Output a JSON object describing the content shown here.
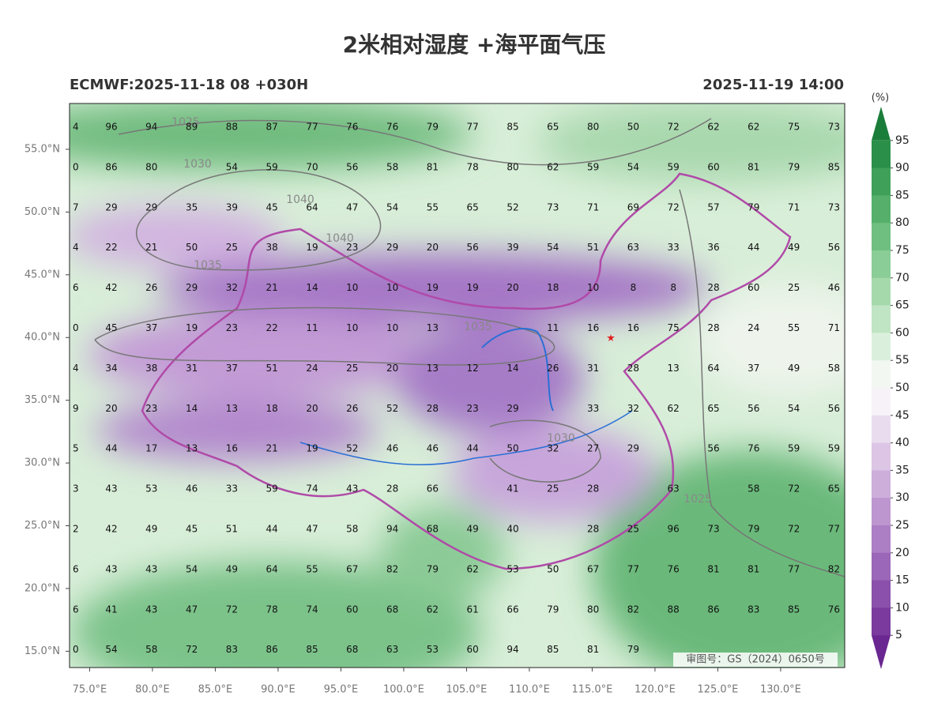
{
  "header": {
    "title": "2米相对湿度 +海平面气压",
    "left": "ECMWF:2025-11-18 08 +030H",
    "right": "2025-11-19 14:00"
  },
  "map": {
    "xlim": [
      73.4,
      135.1
    ],
    "ylim": [
      13.7,
      58.65
    ],
    "xticks": [
      {
        "value": 75,
        "label": "75.0°E"
      },
      {
        "value": 80,
        "label": "80.0°E"
      },
      {
        "value": 85,
        "label": "85.0°E"
      },
      {
        "value": 90,
        "label": "90.0°E"
      },
      {
        "value": 95,
        "label": "95.0°E"
      },
      {
        "value": 100,
        "label": "100.0°E"
      },
      {
        "value": 105,
        "label": "105.0°E"
      },
      {
        "value": 110,
        "label": "110.0°E"
      },
      {
        "value": 115,
        "label": "115.0°E"
      },
      {
        "value": 120,
        "label": "120.0°E"
      },
      {
        "value": 125,
        "label": "125.0°E"
      },
      {
        "value": 130,
        "label": "130.0°E"
      }
    ],
    "yticks": [
      {
        "value": 55,
        "label": "55.0°N"
      },
      {
        "value": 50,
        "label": "50.0°N"
      },
      {
        "value": 45,
        "label": "45.0°N"
      },
      {
        "value": 40,
        "label": "40.0°N"
      },
      {
        "value": 35,
        "label": "35.0°N"
      },
      {
        "value": 30,
        "label": "30.0°N"
      },
      {
        "value": 25,
        "label": "25.0°N"
      },
      {
        "value": 20,
        "label": "20.0°N"
      },
      {
        "value": 15,
        "label": "15.0°N"
      }
    ],
    "isobar_labels": [
      "1025",
      "1030",
      "1040",
      "1040",
      "1035",
      "1035",
      "1030",
      "1025"
    ],
    "approval": "审图号：GS（2024）0650号"
  },
  "grid": {
    "rows": [
      [
        4,
        96,
        94,
        89,
        88,
        87,
        77,
        76,
        76,
        79,
        77,
        85,
        65,
        80,
        50,
        72,
        62,
        62,
        75,
        73
      ],
      [
        0,
        86,
        80,
        null,
        54,
        59,
        70,
        56,
        58,
        81,
        78,
        80,
        62,
        59,
        54,
        59,
        60,
        81,
        79,
        85
      ],
      [
        7,
        29,
        29,
        35,
        39,
        45,
        64,
        47,
        54,
        55,
        65,
        52,
        73,
        71,
        69,
        72,
        57,
        79,
        71,
        73
      ],
      [
        4,
        22,
        21,
        50,
        25,
        38,
        19,
        23,
        29,
        20,
        56,
        39,
        54,
        51,
        63,
        33,
        36,
        44,
        49,
        56
      ],
      [
        6,
        42,
        26,
        29,
        32,
        21,
        14,
        10,
        10,
        19,
        19,
        20,
        18,
        10,
        8,
        8,
        28,
        60,
        25,
        46
      ],
      [
        0,
        45,
        37,
        19,
        23,
        22,
        11,
        10,
        10,
        13,
        null,
        null,
        11,
        16,
        16,
        75,
        28,
        24,
        55,
        71
      ],
      [
        4,
        34,
        38,
        31,
        37,
        51,
        24,
        25,
        20,
        13,
        12,
        14,
        26,
        31,
        28,
        13,
        64,
        37,
        49,
        58
      ],
      [
        9,
        20,
        23,
        14,
        13,
        18,
        20,
        26,
        52,
        28,
        23,
        29,
        null,
        33,
        32,
        62,
        65,
        56,
        54,
        56
      ],
      [
        5,
        44,
        17,
        13,
        16,
        21,
        19,
        52,
        46,
        46,
        44,
        50,
        32,
        27,
        29,
        null,
        56,
        76,
        59,
        59
      ],
      [
        3,
        43,
        53,
        46,
        33,
        59,
        74,
        43,
        28,
        66,
        null,
        41,
        25,
        28,
        null,
        63,
        null,
        58,
        72,
        65
      ],
      [
        2,
        42,
        49,
        45,
        51,
        44,
        47,
        58,
        94,
        68,
        49,
        40,
        null,
        28,
        25,
        96,
        73,
        79,
        72,
        77
      ],
      [
        6,
        43,
        43,
        54,
        49,
        64,
        55,
        67,
        82,
        79,
        62,
        53,
        50,
        67,
        77,
        76,
        81,
        81,
        77,
        82
      ],
      [
        6,
        41,
        43,
        47,
        72,
        78,
        74,
        60,
        68,
        62,
        61,
        66,
        79,
        80,
        82,
        88,
        86,
        83,
        85,
        76
      ],
      [
        0,
        54,
        58,
        72,
        83,
        86,
        85,
        68,
        63,
        53,
        60,
        94,
        85,
        81,
        79,
        null,
        null,
        null,
        null,
        null
      ]
    ]
  },
  "colorbar": {
    "unit": "(%)",
    "levels": [
      95,
      90,
      85,
      80,
      75,
      70,
      65,
      60,
      55,
      50,
      45,
      40,
      35,
      30,
      25,
      20,
      15,
      10,
      5
    ],
    "colors": [
      "#1a7d3a",
      "#2a8f48",
      "#3fa05a",
      "#56b06c",
      "#6fbf80",
      "#8acd96",
      "#a5d9ac",
      "#c0e5c4",
      "#dbf0dc",
      "#f2f8f1",
      "#f7f2f8",
      "#eadcef",
      "#dcc5e5",
      "#cdaedb",
      "#bd96d0",
      "#ac7ec4",
      "#9b67b8",
      "#8a50ab",
      "#7a3a9e",
      "#6b2791"
    ]
  }
}
